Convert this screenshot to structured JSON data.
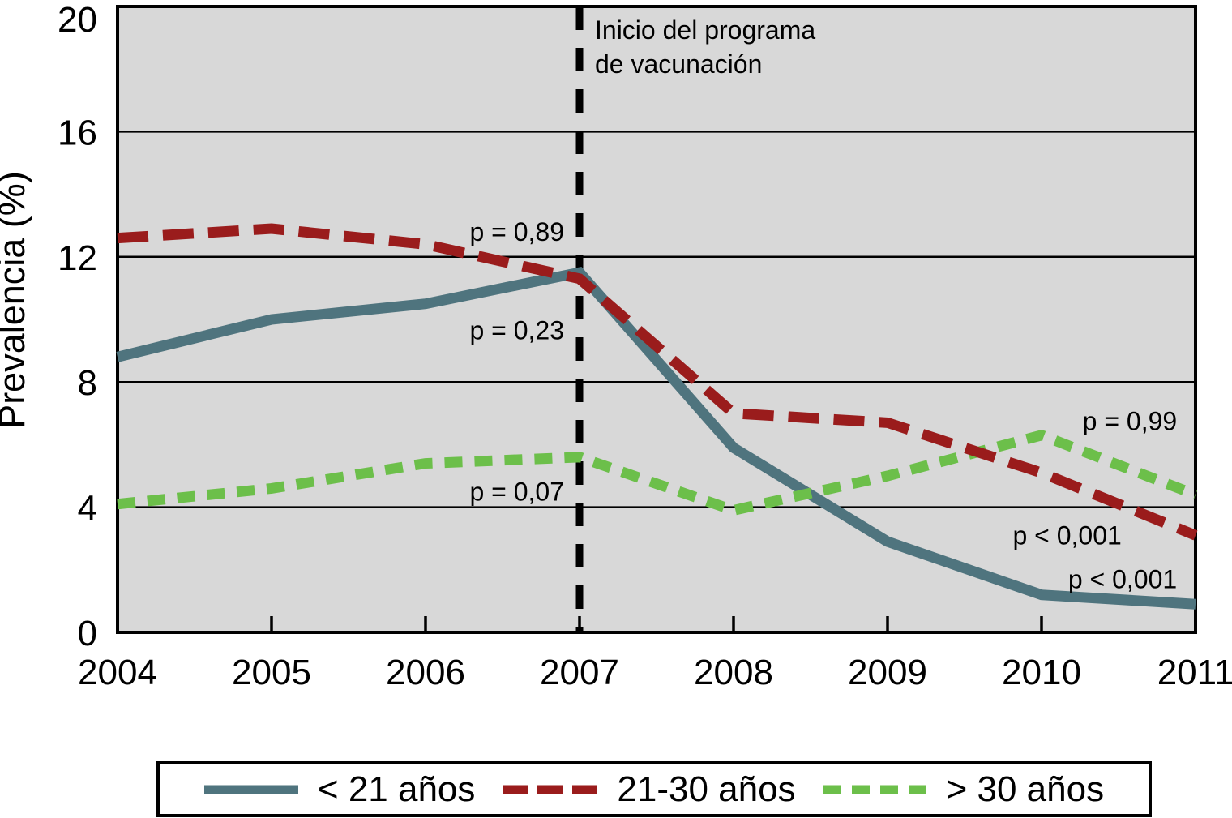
{
  "chart_data": {
    "type": "line",
    "title": "",
    "xlabel": "",
    "ylabel": "Prevalencia (%)",
    "x": [
      2004,
      2005,
      2006,
      2007,
      2008,
      2009,
      2010,
      2011
    ],
    "ylim": [
      0,
      20
    ],
    "yticks": [
      0,
      4,
      8,
      12,
      16,
      20
    ],
    "gridlines_y": [
      4,
      8,
      12,
      16
    ],
    "grid": "on",
    "plot_bg": "#d8d8d8",
    "frame_color": "#000000",
    "series": [
      {
        "name": "< 21 años",
        "color": "#4f747e",
        "style": "solid",
        "dasharray": "",
        "values": [
          8.8,
          10.0,
          10.5,
          11.5,
          5.9,
          2.9,
          1.2,
          0.9
        ]
      },
      {
        "name": "21-30 años",
        "color": "#9a1c1c",
        "style": "dashed",
        "dasharray": "38 18",
        "values": [
          12.6,
          12.9,
          12.4,
          11.3,
          7.0,
          6.7,
          5.1,
          3.1
        ]
      },
      {
        "name": "> 30 años",
        "color": "#6cbf4a",
        "style": "dashed",
        "dasharray": "22 15",
        "values": [
          4.1,
          4.6,
          5.4,
          5.6,
          3.9,
          5.0,
          6.3,
          4.4
        ]
      }
    ],
    "vline": {
      "x": 2007,
      "color": "#000000",
      "label_lines": [
        "Inicio del programa",
        "de vacunación"
      ]
    },
    "annotations": [
      {
        "text": "p = 0,89",
        "x": 2006.9,
        "y": 12.8,
        "anchor": "end"
      },
      {
        "text": "p = 0,23",
        "x": 2006.9,
        "y": 9.65,
        "anchor": "end"
      },
      {
        "text": "p = 0,07",
        "x": 2006.9,
        "y": 4.5,
        "anchor": "end"
      },
      {
        "text": "p = 0,99",
        "x": 2010.88,
        "y": 6.75,
        "anchor": "end"
      },
      {
        "text": "p < 0,001",
        "x": 2010.52,
        "y": 3.1,
        "anchor": "end"
      },
      {
        "text": "p < 0,001",
        "x": 2010.88,
        "y": 1.7,
        "anchor": "end"
      }
    ],
    "legend": {
      "position": "bottom",
      "entries": [
        "< 21 años",
        "21-30 años",
        "> 30 años"
      ]
    }
  }
}
